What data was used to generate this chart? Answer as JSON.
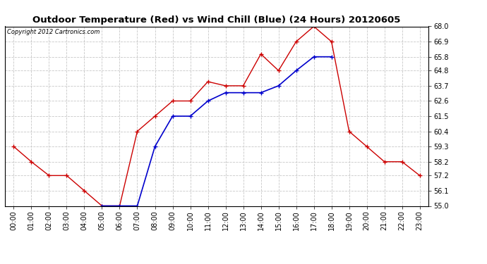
{
  "title": "Outdoor Temperature (Red) vs Wind Chill (Blue) (24 Hours) 20120605",
  "copyright": "Copyright 2012 Cartronics.com",
  "hours": [
    0,
    1,
    2,
    3,
    4,
    5,
    6,
    7,
    8,
    9,
    10,
    11,
    12,
    13,
    14,
    15,
    16,
    17,
    18,
    19,
    20,
    21,
    22,
    23
  ],
  "temp_red": [
    59.3,
    58.2,
    57.2,
    57.2,
    56.1,
    55.0,
    55.0,
    60.4,
    61.5,
    62.6,
    62.6,
    64.0,
    63.7,
    63.7,
    66.0,
    64.8,
    66.9,
    68.0,
    66.9,
    60.4,
    59.3,
    58.2,
    58.2,
    57.2
  ],
  "wind_chill_blue": [
    null,
    null,
    null,
    null,
    null,
    55.0,
    55.0,
    55.0,
    59.3,
    61.5,
    61.5,
    62.6,
    63.2,
    63.2,
    63.2,
    63.7,
    64.8,
    65.8,
    65.8,
    null,
    null,
    null,
    null,
    null
  ],
  "ylim": [
    55.0,
    68.0
  ],
  "yticks": [
    55.0,
    56.1,
    57.2,
    58.2,
    59.3,
    60.4,
    61.5,
    62.6,
    63.7,
    64.8,
    65.8,
    66.9,
    68.0
  ],
  "bg_color": "#ffffff",
  "grid_color": "#c8c8c8",
  "red_color": "#cc0000",
  "blue_color": "#0000cc",
  "title_fontsize": 9.5,
  "tick_fontsize": 7,
  "copyright_fontsize": 6
}
